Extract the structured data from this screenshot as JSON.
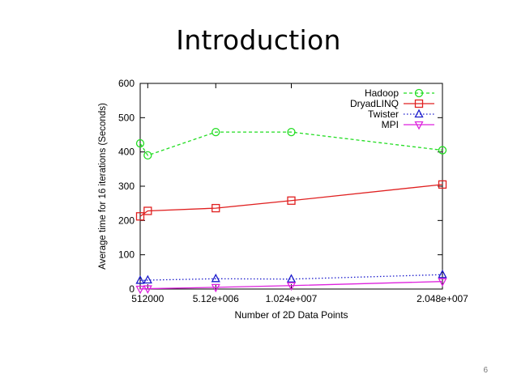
{
  "slide": {
    "title": "Introduction",
    "page_number": "6"
  },
  "chart_data": {
    "type": "line",
    "xlabel": "Number of 2D Data Points",
    "ylabel": "Average time for 16 iterations (Seconds)",
    "xlim": [
      0,
      20480000
    ],
    "ylim": [
      0,
      600
    ],
    "xticks": [
      512000,
      5120000,
      10240000,
      20480000
    ],
    "xtick_labels": [
      "512000",
      "5.12e+006",
      "1.024e+007",
      "2.048e+007"
    ],
    "yticks": [
      0,
      100,
      200,
      300,
      400,
      500,
      600
    ],
    "ytick_labels": [
      "0",
      "100",
      "200",
      "300",
      "400",
      "500",
      "600"
    ],
    "legend_position": "top-right",
    "grid": false,
    "series": [
      {
        "name": "Hadoop",
        "color": "#22dd22",
        "line_style": "dashed",
        "marker": "circle",
        "x": [
          0,
          512000,
          5120000,
          10240000,
          20480000
        ],
        "y": [
          425,
          390,
          458,
          458,
          405
        ]
      },
      {
        "name": "DryadLINQ",
        "color": "#e02020",
        "line_style": "solid",
        "marker": "square",
        "x": [
          0,
          512000,
          5120000,
          10240000,
          20480000
        ],
        "y": [
          212,
          228,
          236,
          258,
          305
        ]
      },
      {
        "name": "Twister",
        "color": "#1a1acc",
        "line_style": "dotted",
        "marker": "triangle-up",
        "x": [
          0,
          512000,
          5120000,
          10240000,
          20480000
        ],
        "y": [
          25,
          26,
          30,
          29,
          42
        ]
      },
      {
        "name": "MPI",
        "color": "#dd22dd",
        "line_style": "solid",
        "marker": "triangle-down",
        "x": [
          0,
          512000,
          5120000,
          10240000,
          20480000
        ],
        "y": [
          0,
          1,
          5,
          10,
          22
        ]
      }
    ]
  }
}
